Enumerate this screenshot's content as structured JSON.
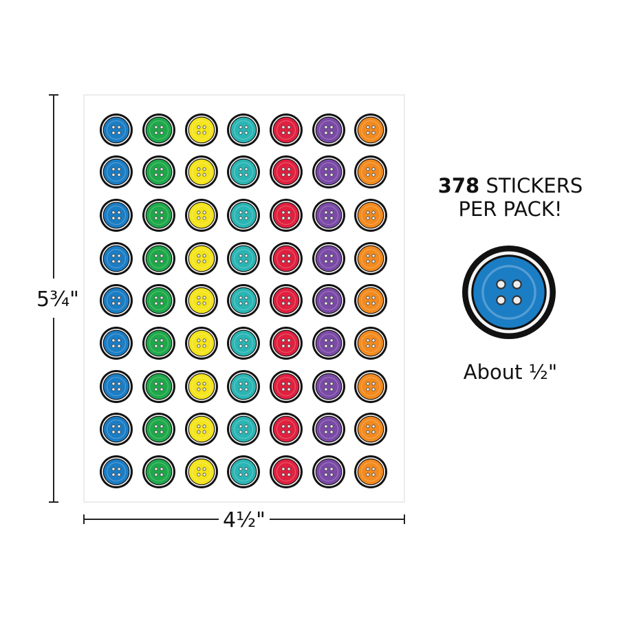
{
  "sheet": {
    "height_label": "5¾\"",
    "width_label": "4½\""
  },
  "callout": {
    "count": "378",
    "count_label": "STICKERS",
    "line2": "PER PACK!",
    "size_label": "About ½\""
  }
}
